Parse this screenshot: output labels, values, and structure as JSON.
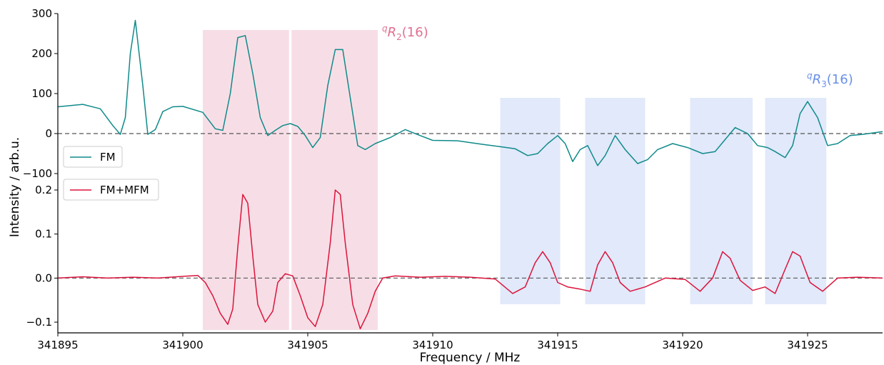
{
  "chart_data": {
    "type": "line",
    "xlabel": "Frequency / MHz",
    "ylabel": "Intensity / arb.u.",
    "xlim": [
      341895,
      341928
    ],
    "x_ticks": [
      341895,
      341900,
      341905,
      341910,
      341915,
      341920,
      341925
    ],
    "x_tick_labels": [
      "341895",
      "341900",
      "341905",
      "341910",
      "341915",
      "341920",
      "341925"
    ],
    "legend_position": "left",
    "panels": [
      {
        "name": "top",
        "ylim": [
          -110,
          305
        ],
        "y_ticks": [
          -100,
          0,
          100,
          200,
          300
        ],
        "y_tick_labels": [
          "−100",
          "0",
          "100",
          "200",
          "300"
        ],
        "zero_line": true,
        "series": [
          {
            "name": "FM",
            "color": "#108a8a",
            "x": [
              341895.0,
              341896.0,
              341896.7,
              341897.2,
              341897.5,
              341897.7,
              341897.9,
              341898.1,
              341898.4,
              341898.6,
              341898.9,
              341899.2,
              341899.6,
              341900.0,
              341900.8,
              341901.3,
              341901.6,
              341901.9,
              341902.2,
              341902.5,
              341902.8,
              341903.1,
              341903.4,
              341903.7,
              341904.0,
              341904.3,
              341904.6,
              341904.9,
              341905.2,
              341905.5,
              341905.8,
              341906.1,
              341906.4,
              341906.7,
              341907.0,
              341907.3,
              341907.7,
              341908.3,
              341908.9,
              341909.5,
              341910.0,
              341911.0,
              341912.0,
              341912.6,
              341913.3,
              341913.8,
              341914.2,
              341914.6,
              341915.0,
              341915.3,
              341915.6,
              341915.9,
              341916.2,
              341916.6,
              341916.9,
              341917.3,
              341917.7,
              341918.2,
              341918.6,
              341919.0,
              341919.6,
              341920.2,
              341920.8,
              341921.3,
              341921.7,
              341922.1,
              341922.6,
              341923.0,
              341923.4,
              341923.7,
              341924.1,
              341924.4,
              341924.7,
              341925.0,
              341925.4,
              341925.8,
              341926.2,
              341926.7,
              341927.2,
              341928.0
            ],
            "y": [
              67,
              73,
              62,
              20,
              -2,
              40,
              200,
              283,
              120,
              -2,
              10,
              55,
              67,
              68,
              53,
              12,
              8,
              100,
              240,
              245,
              150,
              40,
              -5,
              8,
              20,
              25,
              18,
              -5,
              -35,
              -10,
              120,
              210,
              210,
              90,
              -30,
              -40,
              -25,
              -10,
              10,
              -5,
              -17,
              -18,
              -27,
              -32,
              -38,
              -55,
              -50,
              -25,
              -5,
              -25,
              -70,
              -40,
              -30,
              -80,
              -55,
              -5,
              -40,
              -75,
              -65,
              -40,
              -25,
              -35,
              -50,
              -45,
              -15,
              15,
              0,
              -30,
              -35,
              -45,
              -60,
              -30,
              50,
              80,
              40,
              -30,
              -25,
              -5,
              -2,
              5
            ]
          }
        ]
      },
      {
        "name": "bottom",
        "ylim": [
          -0.125,
          0.225
        ],
        "y_ticks": [
          -0.1,
          0.0,
          0.1,
          0.2
        ],
        "y_tick_labels": [
          "−0.1",
          "0.0",
          "0.1",
          "0.2"
        ],
        "zero_line": true,
        "series": [
          {
            "name": "FM+MFM",
            "color": "#dc143c",
            "x": [
              341895.0,
              341896.0,
              341897.0,
              341898.0,
              341899.0,
              341900.0,
              341900.6,
              341900.9,
              341901.2,
              341901.5,
              341901.8,
              341902.0,
              341902.2,
              341902.4,
              341902.6,
              341902.8,
              341903.0,
              341903.3,
              341903.6,
              341903.8,
              341904.1,
              341904.4,
              341904.7,
              341905.0,
              341905.3,
              341905.6,
              341905.9,
              341906.1,
              341906.3,
              341906.5,
              341906.8,
              341907.1,
              341907.4,
              341907.7,
              341908.0,
              341908.5,
              341909.5,
              341910.5,
              341911.5,
              341912.5,
              341913.2,
              341913.7,
              341914.1,
              341914.4,
              341914.7,
              341915.0,
              341915.4,
              341915.9,
              341916.3,
              341916.6,
              341916.9,
              341917.2,
              341917.5,
              341917.9,
              341918.5,
              341919.3,
              341920.1,
              341920.7,
              341921.2,
              341921.6,
              341921.9,
              341922.3,
              341922.8,
              341923.3,
              341923.7,
              341924.1,
              341924.4,
              341924.7,
              341925.1,
              341925.6,
              341926.2,
              341927.0,
              341928.0
            ],
            "y": [
              0.0,
              0.003,
              0.0,
              0.002,
              0.0,
              0.004,
              0.006,
              -0.01,
              -0.04,
              -0.08,
              -0.105,
              -0.07,
              0.07,
              0.19,
              0.17,
              0.05,
              -0.06,
              -0.1,
              -0.075,
              -0.01,
              0.01,
              0.005,
              -0.04,
              -0.09,
              -0.11,
              -0.06,
              0.08,
              0.2,
              0.19,
              0.08,
              -0.06,
              -0.115,
              -0.08,
              -0.03,
              0.0,
              0.005,
              0.002,
              0.004,
              0.002,
              -0.002,
              -0.035,
              -0.02,
              0.035,
              0.06,
              0.035,
              -0.01,
              -0.02,
              -0.025,
              -0.03,
              0.03,
              0.06,
              0.035,
              -0.01,
              -0.03,
              -0.02,
              0.0,
              -0.003,
              -0.03,
              0.0,
              0.06,
              0.045,
              -0.005,
              -0.028,
              -0.02,
              -0.035,
              0.02,
              0.06,
              0.05,
              -0.01,
              -0.03,
              0.0,
              0.002,
              0.0
            ]
          }
        ]
      }
    ],
    "regions": [
      {
        "x": [
          341900.8,
          341904.25
        ],
        "color": "#e8a0b8"
      },
      {
        "x": [
          341904.35,
          341907.8
        ],
        "color": "#e8a0b8"
      },
      {
        "x": [
          341912.7,
          341915.1
        ],
        "color": "#a8c0f0"
      },
      {
        "x": [
          341916.1,
          341918.5
        ],
        "color": "#a8c0f0"
      },
      {
        "x": [
          341920.3,
          341922.8
        ],
        "color": "#a8c0f0"
      },
      {
        "x": [
          341923.3,
          341925.75
        ],
        "color": "#a8c0f0"
      }
    ],
    "annotations": [
      {
        "superscript": "q",
        "letter": "R",
        "subscript": "2",
        "suffix": "(16)",
        "color": "#e07090"
      },
      {
        "superscript": "q",
        "letter": "R",
        "subscript": "3",
        "suffix": "(16)",
        "color": "#6a90e8"
      }
    ],
    "legend": [
      {
        "label": "FM",
        "color": "#108a8a"
      },
      {
        "label": "FM+MFM",
        "color": "#dc143c"
      }
    ]
  }
}
